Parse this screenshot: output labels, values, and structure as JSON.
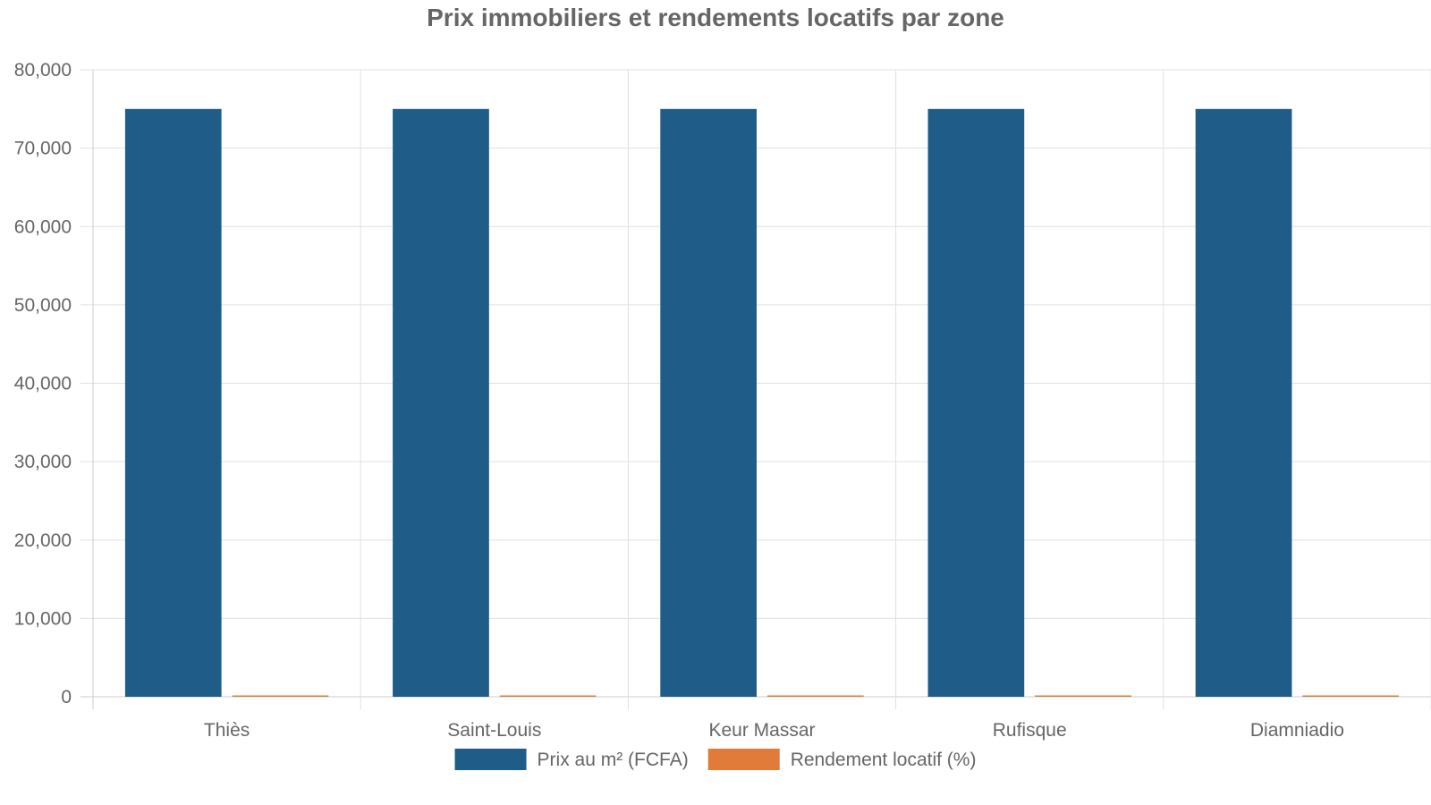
{
  "chart_data": {
    "type": "bar",
    "title": "Prix immobiliers et rendements locatifs par zone",
    "xlabel": "",
    "ylabel": "",
    "ylim": [
      0,
      80000
    ],
    "yticks": [
      "0",
      "10,000",
      "20,000",
      "30,000",
      "40,000",
      "50,000",
      "60,000",
      "70,000",
      "80,000"
    ],
    "ytick_values": [
      0,
      10000,
      20000,
      30000,
      40000,
      50000,
      60000,
      70000,
      80000
    ],
    "categories": [
      "Thiès",
      "Saint-Louis",
      "Keur Massar",
      "Rufisque",
      "Diamniadio"
    ],
    "series": [
      {
        "name": "Prix au m² (FCFA)",
        "color": "#1f5c87",
        "values": [
          75000,
          75000,
          75000,
          75000,
          75000
        ]
      },
      {
        "name": "Rendement locatif (%)",
        "color": "#e07b39",
        "values": [
          8,
          8,
          8,
          8,
          8
        ]
      }
    ],
    "grid": true,
    "legend_position": "bottom"
  }
}
